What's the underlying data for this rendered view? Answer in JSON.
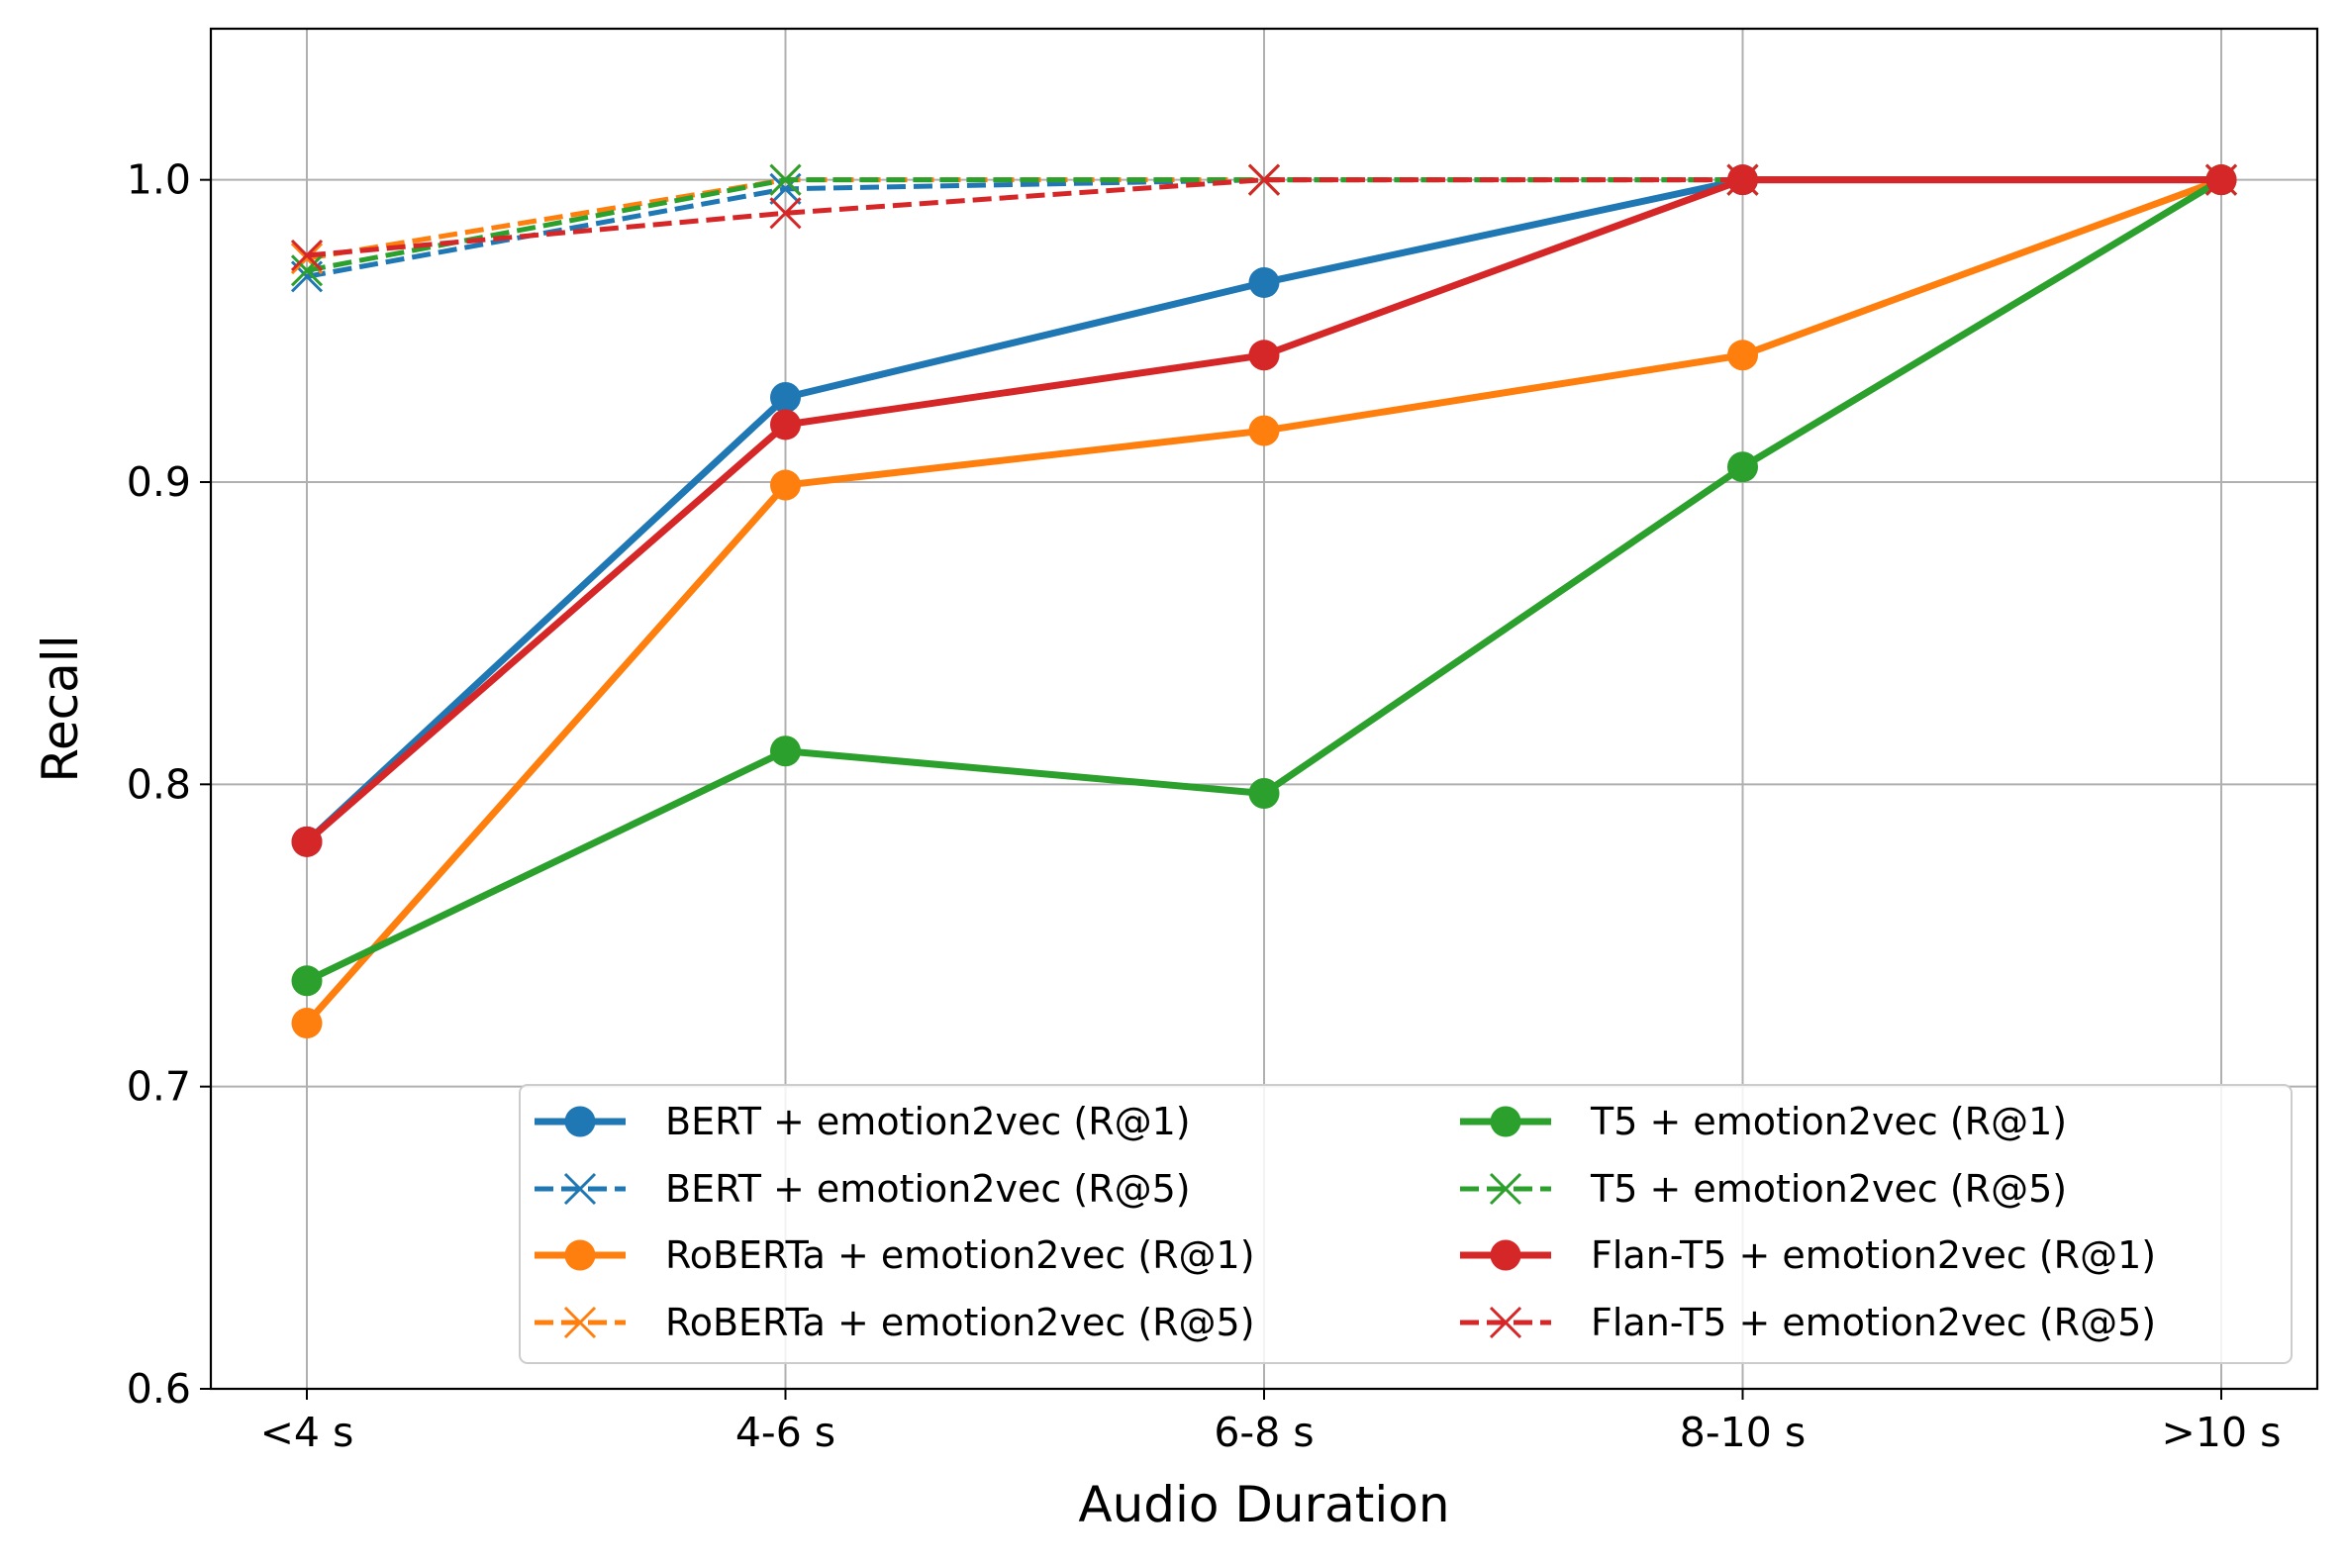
{
  "chart_data": {
    "type": "line",
    "title": "",
    "xlabel": "Audio Duration",
    "ylabel": "Recall",
    "categories": [
      "<4 s",
      "4-6 s",
      "6-8 s",
      "8-10 s",
      ">10 s"
    ],
    "ylim": [
      0.6,
      1.05
    ],
    "yticks": [
      0.6,
      0.7,
      0.8,
      0.9,
      1.0
    ],
    "ytick_labels": [
      "0.6",
      "0.7",
      "0.8",
      "0.9",
      "1.0"
    ],
    "grid": true,
    "legend_position": "lower-right",
    "series": [
      {
        "name": "BERT + emotion2vec (R@1)",
        "color": "#1f77b4",
        "style": "solid",
        "marker": "circle",
        "values": [
          0.781,
          0.928,
          0.966,
          1.0,
          1.0
        ]
      },
      {
        "name": "BERT + emotion2vec (R@5)",
        "color": "#1f77b4",
        "style": "dashed",
        "marker": "x",
        "values": [
          0.968,
          0.997,
          1.0,
          1.0,
          1.0
        ]
      },
      {
        "name": "RoBERTa + emotion2vec (R@1)",
        "color": "#ff7f0e",
        "style": "solid",
        "marker": "circle",
        "values": [
          0.721,
          0.899,
          0.917,
          0.942,
          1.0
        ]
      },
      {
        "name": "RoBERTa + emotion2vec (R@5)",
        "color": "#ff7f0e",
        "style": "dashed",
        "marker": "x",
        "values": [
          0.974,
          1.0,
          1.0,
          1.0,
          1.0
        ]
      },
      {
        "name": "T5 + emotion2vec (R@1)",
        "color": "#2ca02c",
        "style": "solid",
        "marker": "circle",
        "values": [
          0.735,
          0.811,
          0.797,
          0.905,
          1.0
        ]
      },
      {
        "name": "T5 + emotion2vec (R@5)",
        "color": "#2ca02c",
        "style": "dashed",
        "marker": "x",
        "values": [
          0.97,
          1.0,
          1.0,
          1.0,
          1.0
        ]
      },
      {
        "name": "Flan-T5 + emotion2vec (R@1)",
        "color": "#d62728",
        "style": "solid",
        "marker": "circle",
        "values": [
          0.781,
          0.919,
          0.942,
          1.0,
          1.0
        ]
      },
      {
        "name": "Flan-T5 + emotion2vec (R@5)",
        "color": "#d62728",
        "style": "dashed",
        "marker": "x",
        "values": [
          0.975,
          0.989,
          1.0,
          1.0,
          1.0
        ]
      }
    ]
  }
}
